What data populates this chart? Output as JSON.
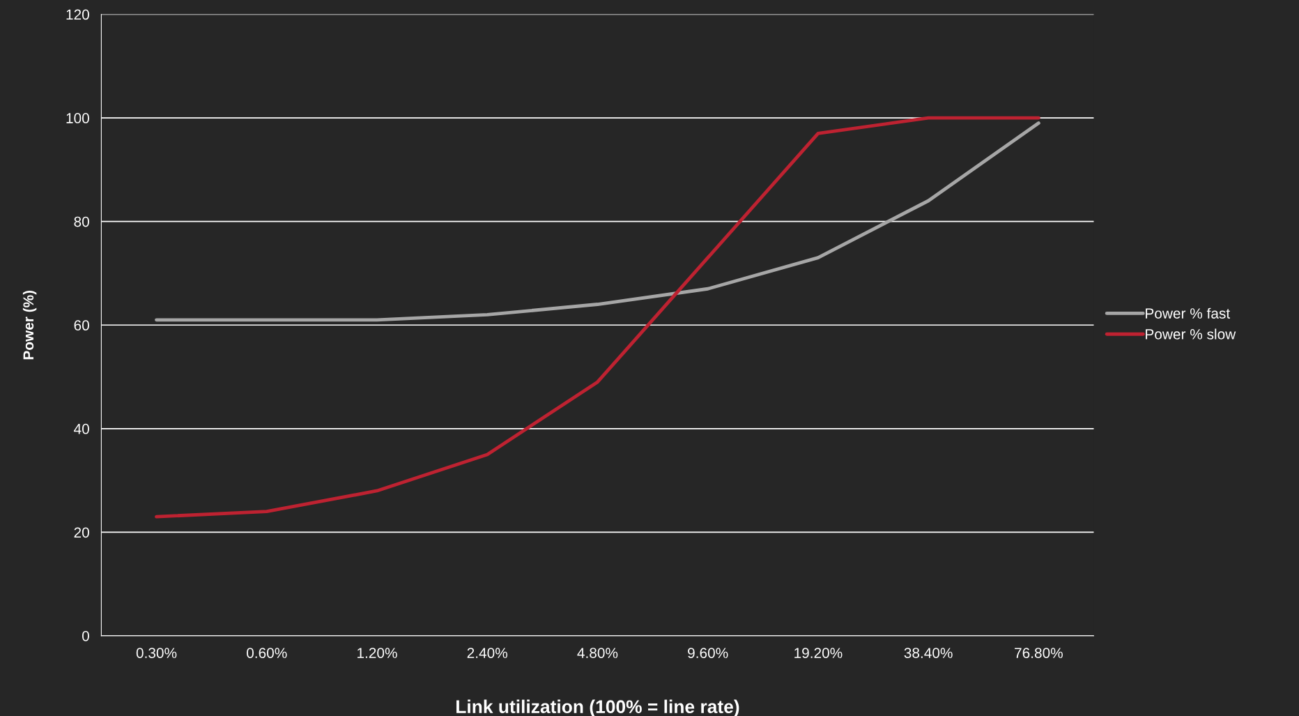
{
  "chart_data": {
    "type": "line",
    "xlabel": "Link utilization (100% = line rate)",
    "ylabel": "Power (%)",
    "categories": [
      "0.30%",
      "0.60%",
      "1.20%",
      "2.40%",
      "4.80%",
      "9.60%",
      "19.20%",
      "38.40%",
      "76.80%"
    ],
    "series": [
      {
        "name": "Power % fast",
        "color": "#a6a6a6",
        "values": [
          61,
          61,
          61,
          62,
          64,
          67,
          73,
          84,
          99
        ]
      },
      {
        "name": "Power % slow",
        "color": "#be2231",
        "values": [
          23,
          24,
          28,
          35,
          49,
          73,
          97,
          100,
          100
        ]
      }
    ],
    "ylim": [
      0,
      120
    ],
    "yticks": [
      0,
      20,
      40,
      60,
      80,
      100,
      120
    ],
    "grid": "y",
    "legend": "right",
    "marker": "none",
    "line_style": "solid"
  }
}
